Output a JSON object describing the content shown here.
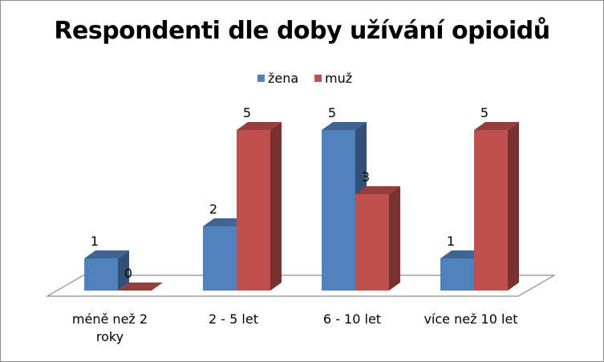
{
  "chart_data": {
    "type": "bar",
    "title": "Respondenti dle doby užívání opioidů",
    "categories": [
      "méně než 2 roky",
      "2 - 5 let",
      "6 - 10 let",
      "více než 10 let"
    ],
    "category_lines": [
      [
        "méně než 2",
        "roky"
      ],
      [
        "2 - 5 let"
      ],
      [
        "6 - 10 let"
      ],
      [
        "více než 10 let"
      ]
    ],
    "series": [
      {
        "name": "žena",
        "values": [
          1,
          2,
          5,
          1
        ],
        "color": "#4f81bd"
      },
      {
        "name": "muž",
        "values": [
          0,
          5,
          3,
          5
        ],
        "color": "#c0504d"
      }
    ],
    "ylim": [
      0,
      5
    ],
    "legend_position": "top",
    "grid": false,
    "data_labels": true,
    "style": "3d-clustered-column"
  }
}
